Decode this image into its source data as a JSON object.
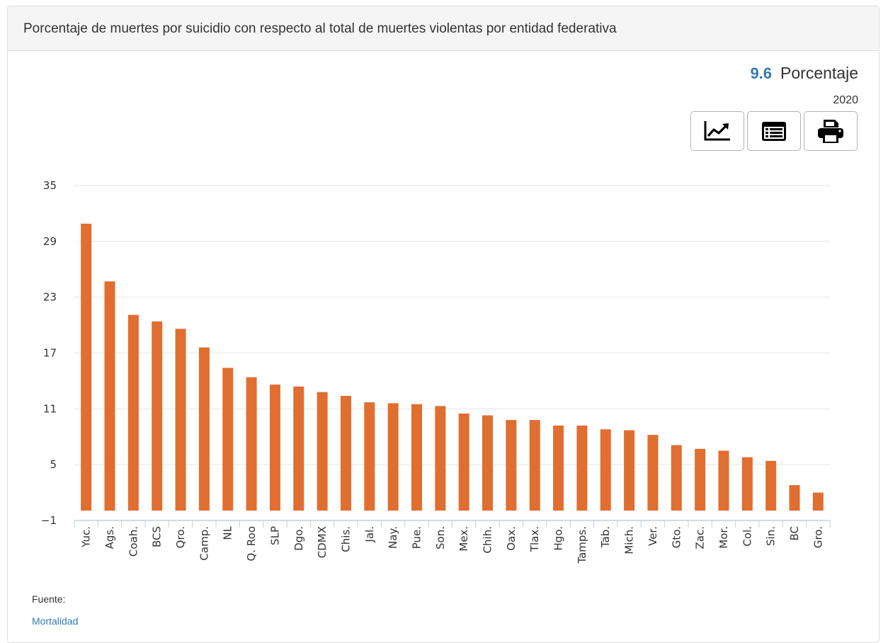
{
  "panel": {
    "title": "Porcentaje de muertes por suicidio con respecto al total de muertes violentas por entidad federativa"
  },
  "indicator": {
    "value": "9.6",
    "unit": "Porcentaje",
    "year": "2020"
  },
  "toolbar": {
    "buttons": [
      {
        "icon": "line-chart-icon"
      },
      {
        "icon": "table-list-icon"
      },
      {
        "icon": "print-icon"
      }
    ]
  },
  "source": {
    "label": "Fuente:",
    "link_text": "Mortalidad"
  },
  "colors": {
    "bar": "#e06e30",
    "accent": "#337ab7",
    "grid": "#e6e6e6",
    "axis": "#c0d0e0"
  },
  "chart_data": {
    "type": "bar",
    "categories": [
      "Yuc.",
      "Ags.",
      "Coah.",
      "BCS",
      "Qro.",
      "Camp.",
      "NL",
      "Q. Roo",
      "SLP",
      "Dgo.",
      "CDMX",
      "Chis.",
      "Jal.",
      "Nay.",
      "Pue.",
      "Son.",
      "Mex.",
      "Chih.",
      "Oax.",
      "Tlax.",
      "Hgo.",
      "Tamps.",
      "Tab.",
      "Mich.",
      "Ver.",
      "Gto.",
      "Zac.",
      "Mor.",
      "Col.",
      "Sin.",
      "BC",
      "Gro."
    ],
    "values": [
      30.9,
      24.7,
      21.1,
      20.4,
      19.6,
      17.6,
      15.4,
      14.4,
      13.6,
      13.4,
      12.8,
      12.4,
      11.7,
      11.6,
      11.5,
      11.3,
      10.5,
      10.3,
      9.8,
      9.8,
      9.2,
      9.2,
      8.8,
      8.7,
      8.2,
      7.1,
      6.7,
      6.5,
      5.8,
      5.4,
      2.8,
      2.0
    ],
    "yticks": [
      -1,
      5,
      11,
      17,
      23,
      29,
      35
    ],
    "ylim": [
      -1,
      35
    ],
    "title": "",
    "xlabel": "",
    "ylabel": "",
    "grid": true,
    "legend": "none"
  }
}
